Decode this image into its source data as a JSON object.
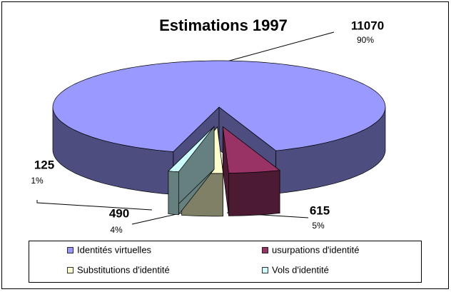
{
  "chart_data": {
    "type": "pie3d",
    "title": "Estimations 1997",
    "categories": [
      "Identités virtuelles",
      "usurpations d'identité",
      "Substitutions d'identité",
      "Vols d'identité"
    ],
    "values": [
      11070,
      615,
      490,
      125
    ],
    "percent_labels": [
      "90%",
      "5%",
      "4%",
      "1%"
    ],
    "colors": [
      "#9999ff",
      "#993366",
      "#ffffcc",
      "#ccffff"
    ],
    "legend": "bottom"
  }
}
